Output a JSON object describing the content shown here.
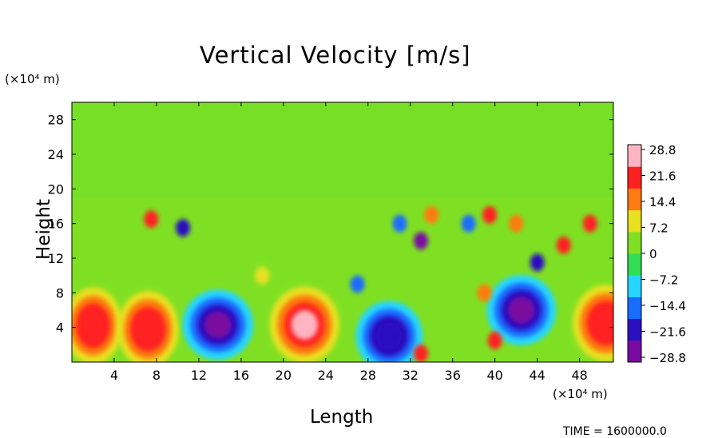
{
  "chart_data": {
    "type": "heatmap",
    "title": "Vertical Velocity [m/s]",
    "xlabel": "Length",
    "ylabel": "Height",
    "x_unit_label": "(×10⁴ m)",
    "y_unit_label": "(×10⁴ m)",
    "x_ticks": [
      "4",
      "8",
      "12",
      "16",
      "20",
      "24",
      "28",
      "32",
      "36",
      "40",
      "44",
      "48"
    ],
    "y_ticks": [
      "4",
      "8",
      "12",
      "16",
      "20",
      "24",
      "28"
    ],
    "xlim": [
      0,
      51.2
    ],
    "ylim": [
      0,
      30
    ],
    "colorbar": {
      "labels": [
        "28.8",
        "21.6",
        "14.4",
        "7.2",
        "0",
        "−7.2",
        "−14.4",
        "−21.6",
        "−28.8"
      ],
      "range": [
        -28.8,
        28.8
      ],
      "colors": [
        "#7a0aa0",
        "#2a10c0",
        "#1a6cff",
        "#26d6ff",
        "#33dd55",
        "#7fe023",
        "#e8e020",
        "#ff7a10",
        "#ff2020",
        "#ffb4c2"
      ]
    },
    "features": [
      {
        "x": 2.0,
        "y": 4.2,
        "w": 9,
        "type": "updraft"
      },
      {
        "x": 7.2,
        "y": 3.8,
        "w": 12,
        "type": "updraft"
      },
      {
        "x": 22.0,
        "y": 4.3,
        "w": 22,
        "type": "updraft"
      },
      {
        "x": 50.5,
        "y": 4.5,
        "w": 18,
        "type": "updraft"
      },
      {
        "x": 13.8,
        "y": 4.3,
        "w": -29,
        "type": "downdraft"
      },
      {
        "x": 30.0,
        "y": 3.0,
        "w": -24,
        "type": "downdraft"
      },
      {
        "x": 42.5,
        "y": 6.0,
        "w": -27,
        "type": "downdraft"
      }
    ]
  },
  "footer": {
    "time_text": "TIME = 1600000.0"
  }
}
